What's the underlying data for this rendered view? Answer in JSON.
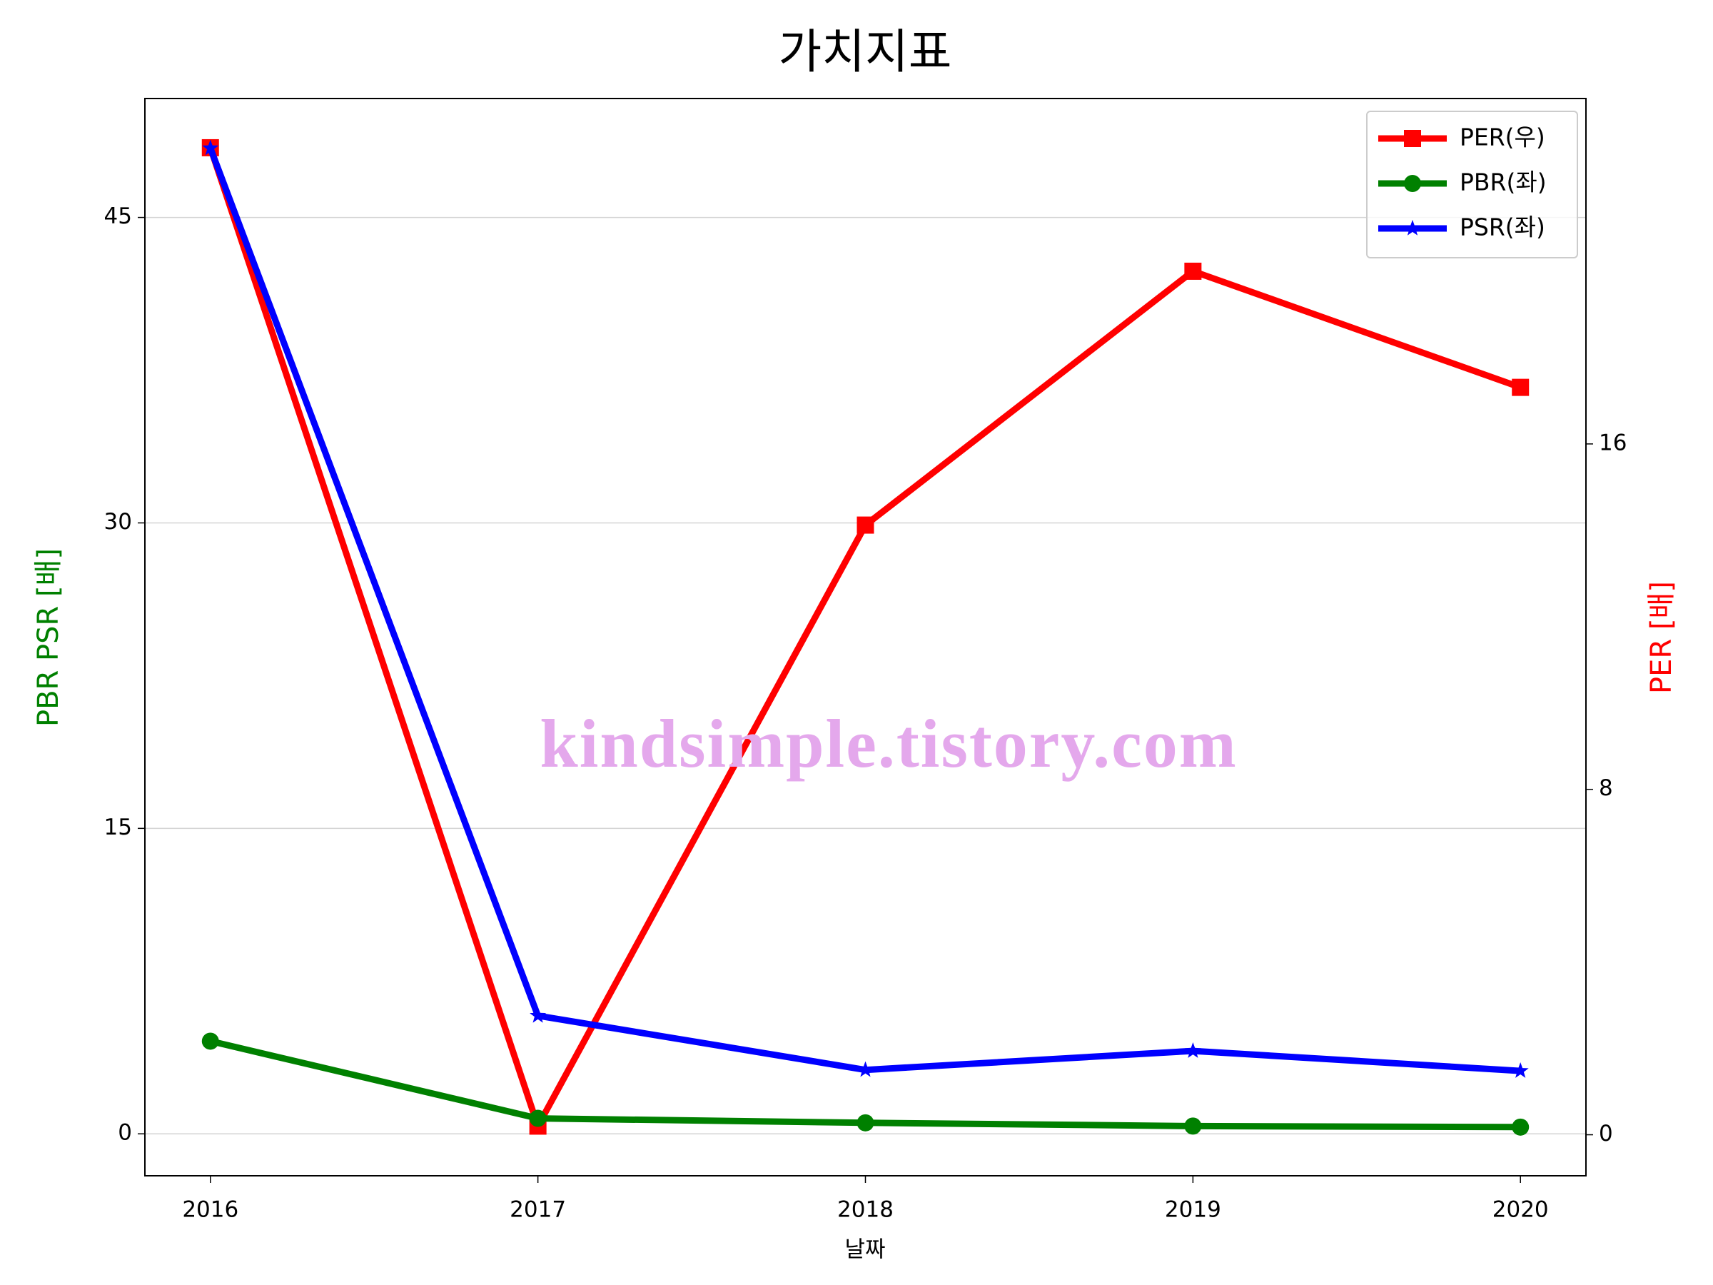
{
  "chart_data": {
    "type": "line",
    "title": "가치지표",
    "x_label": "날짜",
    "y_label": "PBR PSR [배]",
    "y2_label": "PER [배]",
    "x": [
      2016,
      2017,
      2018,
      2019,
      2020
    ],
    "xlim": [
      2015.8,
      2020.2
    ],
    "xticks": [
      2016,
      2017,
      2018,
      2019,
      2020
    ],
    "ylim": [
      -2.06,
      50.84
    ],
    "yticks": [
      0,
      15,
      30,
      45
    ],
    "y2lim": [
      -0.95,
      24.0
    ],
    "y2ticks": [
      0,
      8,
      16
    ],
    "grid": true,
    "legend": "upper right",
    "series": [
      {
        "name": "PER(우)",
        "color": "#ff0000",
        "marker": "square",
        "axis": "y2",
        "values": [
          22.86,
          0.2,
          14.12,
          20.0,
          17.31
        ]
      },
      {
        "name": "PBR(좌)",
        "color": "#008000",
        "marker": "circle",
        "values": [
          4.55,
          0.76,
          0.54,
          0.38,
          0.33
        ]
      },
      {
        "name": "PSR(좌)",
        "color": "#0000ff",
        "marker": "star",
        "values": [
          48.4,
          5.8,
          3.14,
          4.07,
          3.09
        ]
      }
    ],
    "watermark": "kindsimple.tistory.com"
  }
}
